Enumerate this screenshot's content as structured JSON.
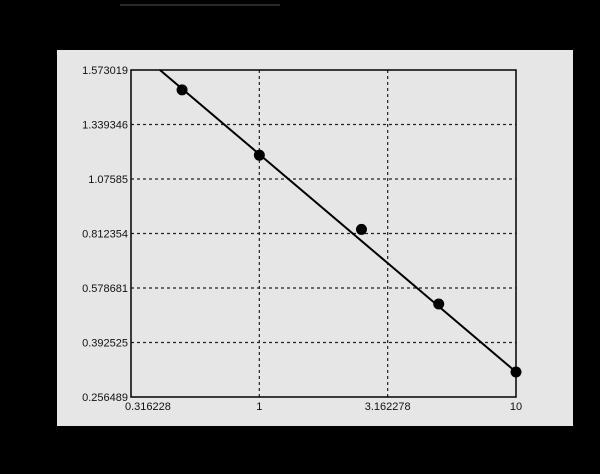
{
  "chart_data": {
    "type": "scatter",
    "title": "",
    "xlabel": "",
    "ylabel": "",
    "x_scale": "log",
    "xlim": [
      0.316228,
      10
    ],
    "ylim": [
      0.256489,
      1.573019
    ],
    "grid": true,
    "grid_style": "dashed",
    "x_ticks": [
      "0.316228",
      "1",
      "3.162278",
      "10"
    ],
    "y_ticks": [
      "1.573019",
      "1.339346",
      "1.07585",
      "0.812354",
      "0.578681",
      "0.392525",
      "0.256489"
    ],
    "series": [
      {
        "type": "scatter",
        "x": [
          0.5,
          1,
          2.5,
          5,
          10
        ],
        "y": [
          1.488,
          1.191,
          0.832,
          0.524,
          0.319
        ],
        "color": "#000000"
      },
      {
        "type": "line",
        "x": [
          0.41,
          10
        ],
        "y": [
          1.573019,
          0.319
        ],
        "color": "#000000"
      }
    ],
    "colors": {
      "background": "#000000",
      "panel": "#e6e6e6",
      "plot": "#e6e6e6"
    }
  }
}
